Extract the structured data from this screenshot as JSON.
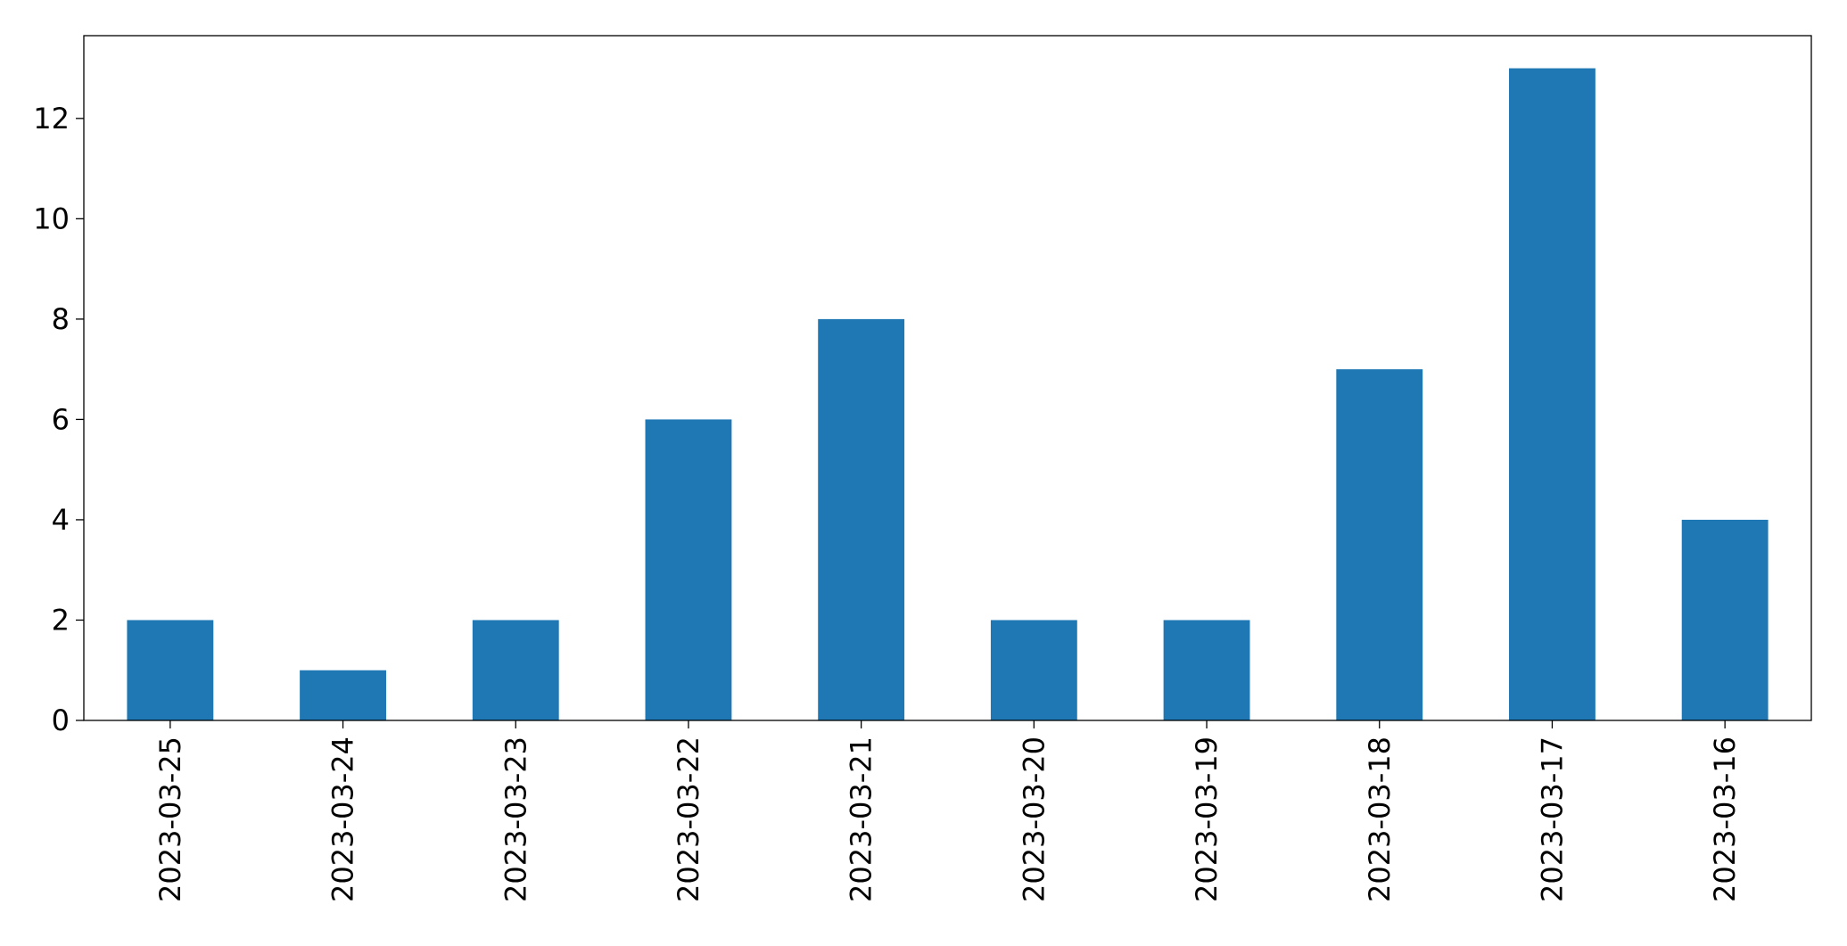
{
  "chart_data": {
    "type": "bar",
    "categories": [
      "2023-03-25",
      "2023-03-24",
      "2023-03-23",
      "2023-03-22",
      "2023-03-21",
      "2023-03-20",
      "2023-03-19",
      "2023-03-18",
      "2023-03-17",
      "2023-03-16"
    ],
    "values": [
      2,
      1,
      2,
      6,
      8,
      2,
      2,
      7,
      13,
      4
    ],
    "color": "#1f77b4",
    "ylim": [
      0,
      13.65
    ],
    "yticks": [
      0,
      2,
      4,
      6,
      8,
      10,
      12
    ],
    "grid": false
  }
}
